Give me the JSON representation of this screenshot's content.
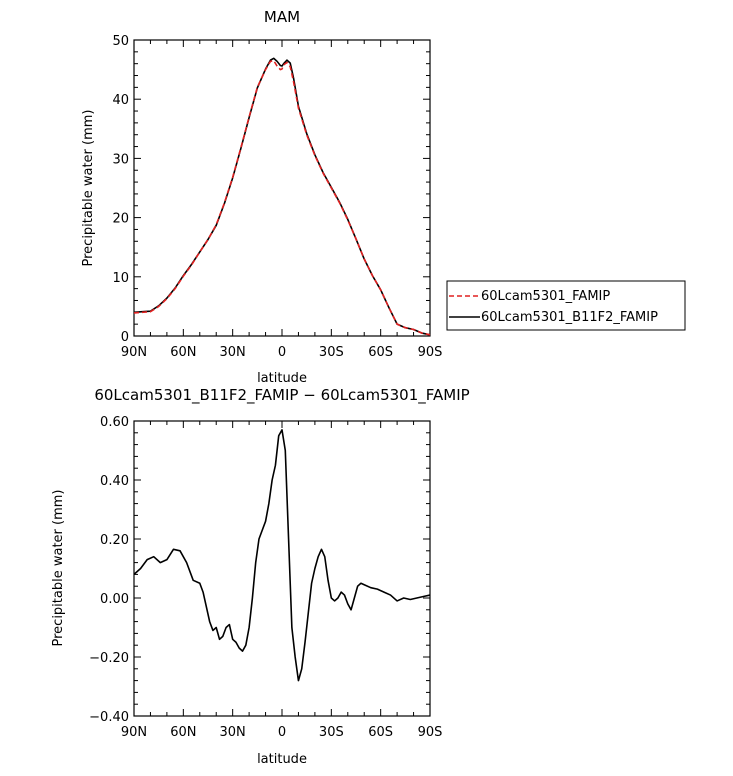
{
  "chart_data": [
    {
      "type": "line",
      "title": "MAM",
      "xlabel": "latitude",
      "ylabel": "Precipitable water (mm)",
      "xlim": [
        -90,
        90
      ],
      "ylim": [
        0,
        50
      ],
      "x_ticks": [
        -90,
        -60,
        -30,
        0,
        30,
        60,
        90
      ],
      "x_tick_labels": [
        "90N",
        "60N",
        "30N",
        "0",
        "30S",
        "60S",
        "90S"
      ],
      "y_ticks": [
        0,
        10,
        20,
        30,
        40,
        50
      ],
      "y_tick_labels": [
        "0",
        "10",
        "20",
        "30",
        "40",
        "50"
      ],
      "legend": "right",
      "x": [
        -90,
        -85,
        -80,
        -75,
        -70,
        -65,
        -60,
        -55,
        -50,
        -45,
        -40,
        -35,
        -30,
        -25,
        -20,
        -15,
        -10,
        -7,
        -5,
        -3,
        -1,
        0,
        1,
        3,
        5,
        7,
        10,
        15,
        20,
        25,
        30,
        35,
        40,
        45,
        50,
        55,
        60,
        65,
        70,
        75,
        80,
        85,
        90
      ],
      "series": [
        {
          "name": "60Lcam5301_FAMIP",
          "color": "#e02020",
          "dash": "dashed",
          "values": [
            3.9,
            4.0,
            4.1,
            5.0,
            6.3,
            8.0,
            10.1,
            12.0,
            14.2,
            16.3,
            18.8,
            22.5,
            26.8,
            31.8,
            37.0,
            42.0,
            45.0,
            46.4,
            46.5,
            45.6,
            45.0,
            45.1,
            45.8,
            46.2,
            45.5,
            43.0,
            38.5,
            34.0,
            30.5,
            27.5,
            25.0,
            22.5,
            19.6,
            16.4,
            13.0,
            10.2,
            7.8,
            4.8,
            2.0,
            1.4,
            1.1,
            0.5,
            0.2
          ]
        },
        {
          "name": "60Lcam5301_B11F2_FAMIP",
          "color": "#000000",
          "dash": "solid",
          "values": [
            4.0,
            4.1,
            4.2,
            5.1,
            6.4,
            8.1,
            10.2,
            12.1,
            14.2,
            16.3,
            18.7,
            22.4,
            26.7,
            31.7,
            36.9,
            41.9,
            45.1,
            46.6,
            46.9,
            46.4,
            45.7,
            45.6,
            46.0,
            46.6,
            46.1,
            43.6,
            38.8,
            34.2,
            30.6,
            27.6,
            25.1,
            22.6,
            19.7,
            16.4,
            13.0,
            10.2,
            7.8,
            4.8,
            2.0,
            1.4,
            1.1,
            0.5,
            0.2
          ]
        }
      ]
    },
    {
      "type": "line",
      "title": "60Lcam5301_B11F2_FAMIP − 60Lcam5301_FAMIP",
      "xlabel": "latitude",
      "ylabel": "Precipitable water (mm)",
      "xlim": [
        -90,
        90
      ],
      "ylim": [
        -0.4,
        0.6
      ],
      "x_ticks": [
        -90,
        -60,
        -30,
        0,
        30,
        60,
        90
      ],
      "x_tick_labels": [
        "90N",
        "60N",
        "30N",
        "0",
        "30S",
        "60S",
        "90S"
      ],
      "y_ticks": [
        -0.4,
        -0.2,
        0.0,
        0.2,
        0.4,
        0.6
      ],
      "y_tick_labels": [
        "−0.40",
        "−0.20",
        "0.00",
        "0.20",
        "0.40",
        "0.60"
      ],
      "x": [
        -90,
        -86,
        -82,
        -78,
        -74,
        -70,
        -66,
        -62,
        -58,
        -54,
        -50,
        -48,
        -46,
        -44,
        -42,
        -40,
        -38,
        -36,
        -34,
        -32,
        -30,
        -28,
        -26,
        -24,
        -22,
        -20,
        -18,
        -16,
        -14,
        -12,
        -10,
        -8,
        -6,
        -4,
        -2,
        0,
        2,
        4,
        6,
        8,
        10,
        12,
        14,
        16,
        18,
        20,
        22,
        24,
        26,
        28,
        30,
        32,
        34,
        36,
        38,
        40,
        42,
        44,
        46,
        48,
        50,
        54,
        58,
        62,
        66,
        70,
        74,
        78,
        82,
        86,
        90
      ],
      "series": [
        {
          "name": "",
          "color": "#000000",
          "dash": "solid",
          "values": [
            0.08,
            0.1,
            0.13,
            0.14,
            0.12,
            0.13,
            0.165,
            0.16,
            0.12,
            0.06,
            0.05,
            0.02,
            -0.03,
            -0.08,
            -0.11,
            -0.1,
            -0.14,
            -0.13,
            -0.1,
            -0.09,
            -0.14,
            -0.15,
            -0.17,
            -0.18,
            -0.16,
            -0.1,
            0.0,
            0.12,
            0.2,
            0.23,
            0.26,
            0.32,
            0.4,
            0.45,
            0.55,
            0.57,
            0.5,
            0.2,
            -0.1,
            -0.2,
            -0.28,
            -0.24,
            -0.15,
            -0.05,
            0.05,
            0.1,
            0.14,
            0.165,
            0.14,
            0.06,
            0.0,
            -0.01,
            0.0,
            0.02,
            0.01,
            -0.02,
            -0.04,
            0.0,
            0.04,
            0.05,
            0.045,
            0.035,
            0.03,
            0.02,
            0.01,
            -0.01,
            0.0,
            -0.005,
            0.0,
            0.005,
            0.01
          ]
        }
      ]
    }
  ]
}
